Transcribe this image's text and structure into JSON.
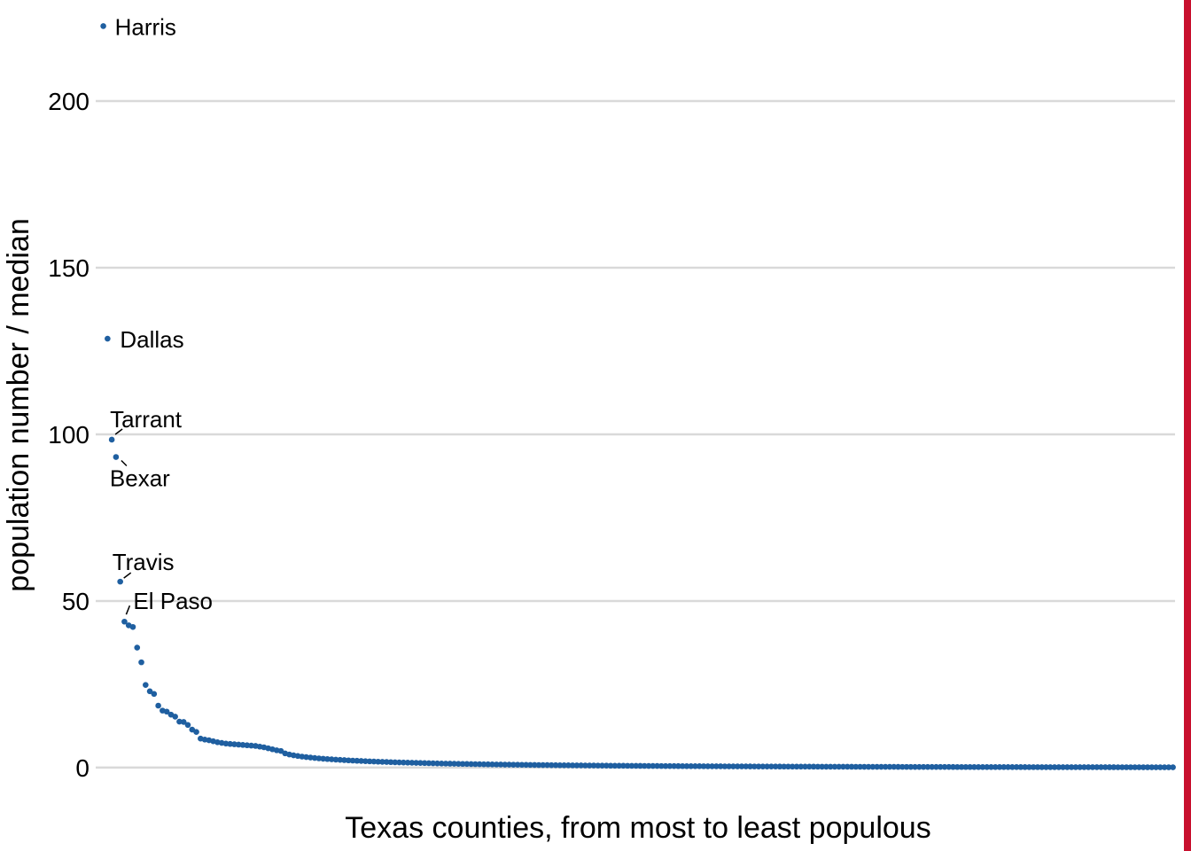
{
  "colors": {
    "point": "#1f5fa0",
    "grid": "#d9d9d9",
    "edge_accent": "#c8102e"
  },
  "chart_data": {
    "type": "scatter",
    "title": "",
    "xlabel": "Texas counties, from most to least populous",
    "ylabel": "population number / median",
    "ylim": [
      -8,
      225
    ],
    "xlim": [
      -1.8,
      253.5
    ],
    "grid": "horizontal major gridlines",
    "legend": "none",
    "yticks": [
      0,
      50,
      100,
      150,
      200
    ],
    "ytick_labels": [
      "0",
      "50",
      "100",
      "150",
      "200"
    ],
    "xtick_labels": [],
    "top_values": [
      222.5,
      128.7,
      98.4,
      93.2,
      55.8,
      43.8,
      42.7,
      42.2,
      36.0,
      31.6,
      24.8,
      22.9,
      22.1,
      18.6,
      17.1,
      16.8,
      15.9,
      15.3,
      13.8,
      13.7,
      12.8,
      11.4,
      10.7,
      8.7,
      8.4,
      8.2,
      7.9,
      7.6,
      7.4,
      7.2,
      7.1,
      7.0,
      6.9,
      6.8,
      6.7,
      6.6,
      6.5,
      6.3,
      6.1,
      5.8,
      5.5,
      5.2
    ],
    "tail_decay": {
      "count": 212,
      "start": 5.0,
      "end": 0.1
    },
    "annotations": [
      {
        "label": "Harris",
        "index": 0,
        "value": 222.5
      },
      {
        "label": "Dallas",
        "index": 1,
        "value": 128.7
      },
      {
        "label": "Tarrant",
        "index": 2,
        "value": 98.4
      },
      {
        "label": "Bexar",
        "index": 3,
        "value": 93.2
      },
      {
        "label": "Travis",
        "index": 4,
        "value": 55.8
      },
      {
        "label": "El Paso",
        "index": 5,
        "value": 43.8
      }
    ]
  }
}
